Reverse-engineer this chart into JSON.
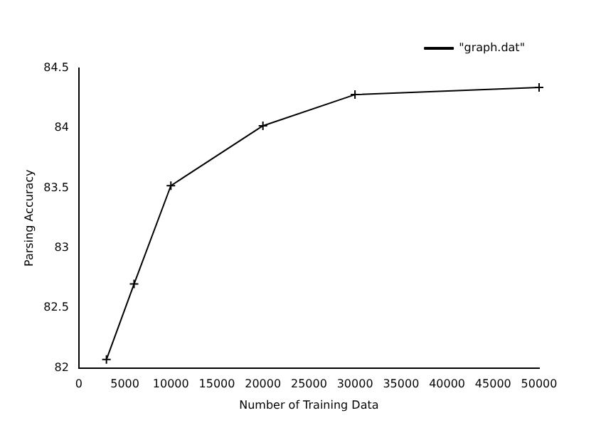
{
  "chart_data": {
    "type": "line",
    "xlabel": "Number of Training Data",
    "ylabel": "Parsing Accuracy",
    "x": [
      3000,
      6000,
      10000,
      20000,
      30000,
      50000
    ],
    "series": [
      {
        "name": "\"graph.dat\"",
        "color": "#000000",
        "values": [
          82.07,
          82.7,
          83.52,
          84.02,
          84.28,
          84.34
        ]
      }
    ],
    "xlim": [
      0,
      50000
    ],
    "xticks": [
      0,
      5000,
      10000,
      15000,
      20000,
      25000,
      30000,
      35000,
      40000,
      45000,
      50000
    ],
    "ylim": [
      82,
      84.5
    ],
    "yticks": [
      82,
      82.5,
      83,
      83.5,
      84,
      84.5
    ],
    "grid": false,
    "legend": "top right",
    "marker": "cross",
    "line_style": "solid"
  }
}
